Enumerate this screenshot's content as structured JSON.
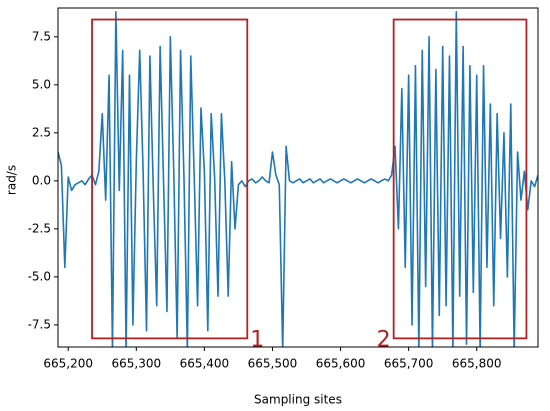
{
  "chart_data": {
    "type": "line",
    "xlabel": "Sampling sites",
    "ylabel": "rad/s",
    "xlim": [
      665185,
      665890
    ],
    "ylim": [
      -8.65,
      9.0
    ],
    "xticks": [
      {
        "value": 665200,
        "label": "665,200"
      },
      {
        "value": 665300,
        "label": "665,300"
      },
      {
        "value": 665400,
        "label": "665,400"
      },
      {
        "value": 665500,
        "label": "665,500"
      },
      {
        "value": 665600,
        "label": "665,600"
      },
      {
        "value": 665700,
        "label": "665,700"
      },
      {
        "value": 665800,
        "label": "665,800"
      }
    ],
    "yticks": [
      -7.5,
      {
        "value": -5,
        "label": "-5.0"
      },
      -2.5,
      {
        "value": 0,
        "label": "0.0"
      },
      2.5,
      {
        "value": 5,
        "label": "5.0"
      },
      7.5
    ],
    "grid": false,
    "series": [
      {
        "color": "#1f77b4",
        "x": [
          665185,
          665190,
          665195,
          665200,
          665205,
          665210,
          665215,
          665220,
          665225,
          665230,
          665235,
          665240,
          665245,
          665250,
          665255,
          665260,
          665265,
          665270,
          665275,
          665280,
          665285,
          665290,
          665295,
          665300,
          665305,
          665310,
          665315,
          665320,
          665325,
          665330,
          665335,
          665340,
          665345,
          665350,
          665355,
          665360,
          665365,
          665370,
          665375,
          665380,
          665385,
          665390,
          665395,
          665400,
          665405,
          665410,
          665415,
          665420,
          665425,
          665430,
          665435,
          665440,
          665445,
          665450,
          665455,
          665460,
          665465,
          665470,
          665475,
          665480,
          665485,
          665490,
          665495,
          665500,
          665505,
          665510,
          665515,
          665520,
          665525,
          665530,
          665535,
          665540,
          665545,
          665550,
          665555,
          665560,
          665565,
          665570,
          665575,
          665580,
          665585,
          665590,
          665595,
          665600,
          665605,
          665610,
          665615,
          665620,
          665625,
          665630,
          665635,
          665640,
          665645,
          665650,
          665655,
          665660,
          665665,
          665670,
          665675,
          665680,
          665685,
          665690,
          665695,
          665700,
          665705,
          665710,
          665715,
          665720,
          665725,
          665730,
          665735,
          665740,
          665745,
          665750,
          665755,
          665760,
          665765,
          665770,
          665775,
          665780,
          665785,
          665790,
          665795,
          665800,
          665805,
          665810,
          665815,
          665820,
          665825,
          665830,
          665835,
          665840,
          665845,
          665850,
          665855,
          665860,
          665865,
          665870,
          665875,
          665880,
          665885,
          665890
        ],
        "values": [
          1.5,
          0.8,
          -4.5,
          0.2,
          -0.5,
          -0.2,
          -0.1,
          0,
          -0.2,
          0.1,
          0.3,
          -0.2,
          0.5,
          3.5,
          -1,
          5.5,
          -8.8,
          8.8,
          -0.5,
          6.8,
          -8.8,
          5.5,
          -7.5,
          1,
          6.8,
          0.5,
          -7.8,
          6.5,
          -0.5,
          -6.5,
          7,
          0,
          -6.8,
          7.5,
          0.5,
          -8.2,
          6.8,
          0.2,
          -8.8,
          6.5,
          0.3,
          -6.5,
          3.8,
          0.5,
          -7.8,
          3.5,
          0.2,
          -6,
          3.5,
          0,
          -6,
          1,
          -2.5,
          -0.2,
          0,
          -0.3,
          0,
          0.1,
          -0.1,
          0,
          0.2,
          0,
          -0.1,
          1.5,
          0.3,
          -0.2,
          -8.8,
          1.8,
          0,
          -0.1,
          0,
          0.1,
          -0.1,
          0,
          0.1,
          -0.1,
          0,
          0.1,
          -0.1,
          0,
          0.1,
          0,
          -0.1,
          0,
          0.1,
          0,
          -0.1,
          0,
          0.1,
          0,
          -0.1,
          0,
          0.1,
          0,
          -0.1,
          0,
          0.1,
          0,
          0.3,
          1.8,
          -2.5,
          4.8,
          -4.5,
          5.5,
          -7.5,
          6,
          -8.8,
          6.8,
          -5.5,
          7.5,
          -8.8,
          5.8,
          -7,
          7,
          -6.5,
          6.5,
          -8.8,
          8.8,
          -6,
          7,
          -8.5,
          6,
          -5.8,
          5.5,
          -8.8,
          6,
          -4.5,
          4,
          -6.5,
          3.5,
          -3,
          2.5,
          -5,
          4,
          -8.8,
          1.5,
          -1,
          0.5,
          -1.5,
          0,
          -0.3,
          0.3
        ]
      }
    ],
    "boxes": [
      {
        "label": "1",
        "color": "#b22222",
        "x": [
          665235,
          665463
        ],
        "y": [
          -8.2,
          8.4
        ]
      },
      {
        "label": "2",
        "color": "#b22222",
        "x": [
          665678,
          665873
        ],
        "y": [
          -8.2,
          8.4
        ]
      }
    ]
  }
}
